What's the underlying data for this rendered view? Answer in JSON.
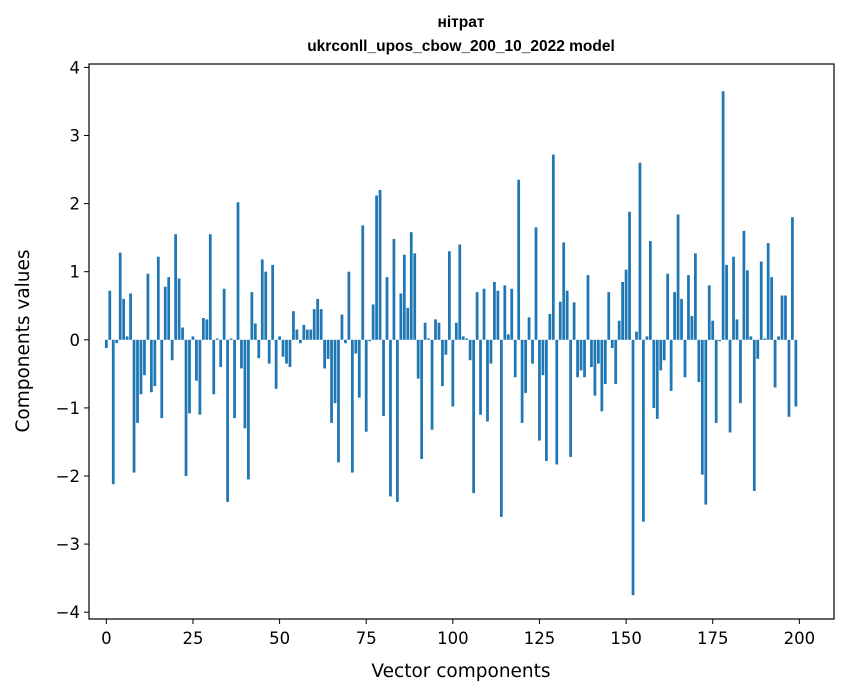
{
  "chart_data": {
    "type": "bar",
    "title": "нітрат",
    "subtitle": "ukrconll_upos_cbow_200_10_2022 model",
    "xlabel": "Vector components",
    "ylabel": "Components values",
    "xlim": [
      -5,
      210
    ],
    "ylim": [
      -4.1,
      4.05
    ],
    "xticks": [
      0,
      25,
      50,
      75,
      100,
      125,
      150,
      175,
      200
    ],
    "yticks": [
      -4,
      -3,
      -2,
      -1,
      0,
      1,
      2,
      3,
      4
    ],
    "ytick_labels": [
      "−4",
      "−3",
      "−2",
      "−1",
      "0",
      "1",
      "2",
      "3",
      "4"
    ],
    "bar_color": "#1f77b4",
    "grid": false,
    "x": [
      0,
      1,
      2,
      3,
      4,
      5,
      6,
      7,
      8,
      9,
      10,
      11,
      12,
      13,
      14,
      15,
      16,
      17,
      18,
      19,
      20,
      21,
      22,
      23,
      24,
      25,
      26,
      27,
      28,
      29,
      30,
      31,
      32,
      33,
      34,
      35,
      36,
      37,
      38,
      39,
      40,
      41,
      42,
      43,
      44,
      45,
      46,
      47,
      48,
      49,
      50,
      51,
      52,
      53,
      54,
      55,
      56,
      57,
      58,
      59,
      60,
      61,
      62,
      63,
      64,
      65,
      66,
      67,
      68,
      69,
      70,
      71,
      72,
      73,
      74,
      75,
      76,
      77,
      78,
      79,
      80,
      81,
      82,
      83,
      84,
      85,
      86,
      87,
      88,
      89,
      90,
      91,
      92,
      93,
      94,
      95,
      96,
      97,
      98,
      99,
      100,
      101,
      102,
      103,
      104,
      105,
      106,
      107,
      108,
      109,
      110,
      111,
      112,
      113,
      114,
      115,
      116,
      117,
      118,
      119,
      120,
      121,
      122,
      123,
      124,
      125,
      126,
      127,
      128,
      129,
      130,
      131,
      132,
      133,
      134,
      135,
      136,
      137,
      138,
      139,
      140,
      141,
      142,
      143,
      144,
      145,
      146,
      147,
      148,
      149,
      150,
      151,
      152,
      153,
      154,
      155,
      156,
      157,
      158,
      159,
      160,
      161,
      162,
      163,
      164,
      165,
      166,
      167,
      168,
      169,
      170,
      171,
      172,
      173,
      174,
      175,
      176,
      177,
      178,
      179,
      180,
      181,
      182,
      183,
      184,
      185,
      186,
      187,
      188,
      189,
      190,
      191,
      192,
      193,
      194,
      195,
      196,
      197,
      198,
      199
    ],
    "values": [
      -0.12,
      0.72,
      -2.12,
      -0.05,
      1.28,
      0.6,
      0.05,
      0.68,
      -1.95,
      -1.22,
      -0.8,
      -0.52,
      0.97,
      -0.77,
      -0.68,
      1.22,
      -1.15,
      0.78,
      0.92,
      -0.3,
      1.55,
      0.9,
      0.18,
      -2.0,
      -1.08,
      0.05,
      -0.6,
      -1.1,
      0.32,
      0.3,
      1.55,
      -0.8,
      0.02,
      -0.4,
      0.75,
      -2.38,
      0.02,
      -1.15,
      2.02,
      -0.42,
      -1.3,
      -2.05,
      0.7,
      0.24,
      -0.27,
      1.18,
      1.0,
      -0.35,
      1.1,
      -0.72,
      0.05,
      -0.25,
      -0.35,
      -0.4,
      0.42,
      0.15,
      -0.05,
      0.22,
      0.15,
      0.15,
      0.45,
      0.6,
      0.45,
      -0.42,
      -0.28,
      -1.22,
      -0.93,
      -1.8,
      0.37,
      -0.05,
      1.0,
      -1.95,
      -0.2,
      -0.85,
      1.68,
      -1.35,
      -0.02,
      0.52,
      2.12,
      2.2,
      -1.12,
      0.92,
      -2.3,
      1.48,
      -2.38,
      0.68,
      1.25,
      0.47,
      1.58,
      1.27,
      -0.57,
      -1.75,
      0.25,
      0.02,
      -1.32,
      0.3,
      0.25,
      -0.68,
      -0.22,
      1.3,
      -0.98,
      0.25,
      1.4,
      0.05,
      0.02,
      -0.3,
      -2.25,
      0.7,
      -1.1,
      0.75,
      -1.2,
      -0.35,
      0.85,
      0.72,
      -2.6,
      0.8,
      0.08,
      0.75,
      -0.55,
      2.35,
      -1.22,
      -0.78,
      0.33,
      -0.35,
      1.65,
      -1.48,
      -0.52,
      -1.78,
      0.38,
      2.72,
      -1.83,
      0.56,
      1.43,
      0.72,
      -1.72,
      0.55,
      -0.55,
      -0.45,
      -0.55,
      0.95,
      -0.4,
      -0.82,
      -0.35,
      -1.05,
      -0.65,
      0.7,
      -0.12,
      -0.65,
      0.28,
      0.85,
      1.03,
      1.88,
      -3.75,
      0.12,
      2.6,
      -2.67,
      0.05,
      1.45,
      -1.0,
      -1.16,
      -0.45,
      -0.3,
      0.97,
      -0.75,
      0.7,
      1.84,
      0.6,
      -0.55,
      0.95,
      0.35,
      1.27,
      -0.62,
      -1.98,
      -2.42,
      0.8,
      0.28,
      -1.22,
      -0.02,
      3.65,
      1.1,
      -1.36,
      1.22,
      0.3,
      -0.93,
      1.6,
      1.02,
      0.05,
      -2.22,
      -0.28,
      1.15,
      0.02,
      1.42,
      0.92,
      -0.7,
      0.05,
      0.65,
      0.65,
      -1.13,
      1.8,
      -0.98
    ]
  }
}
